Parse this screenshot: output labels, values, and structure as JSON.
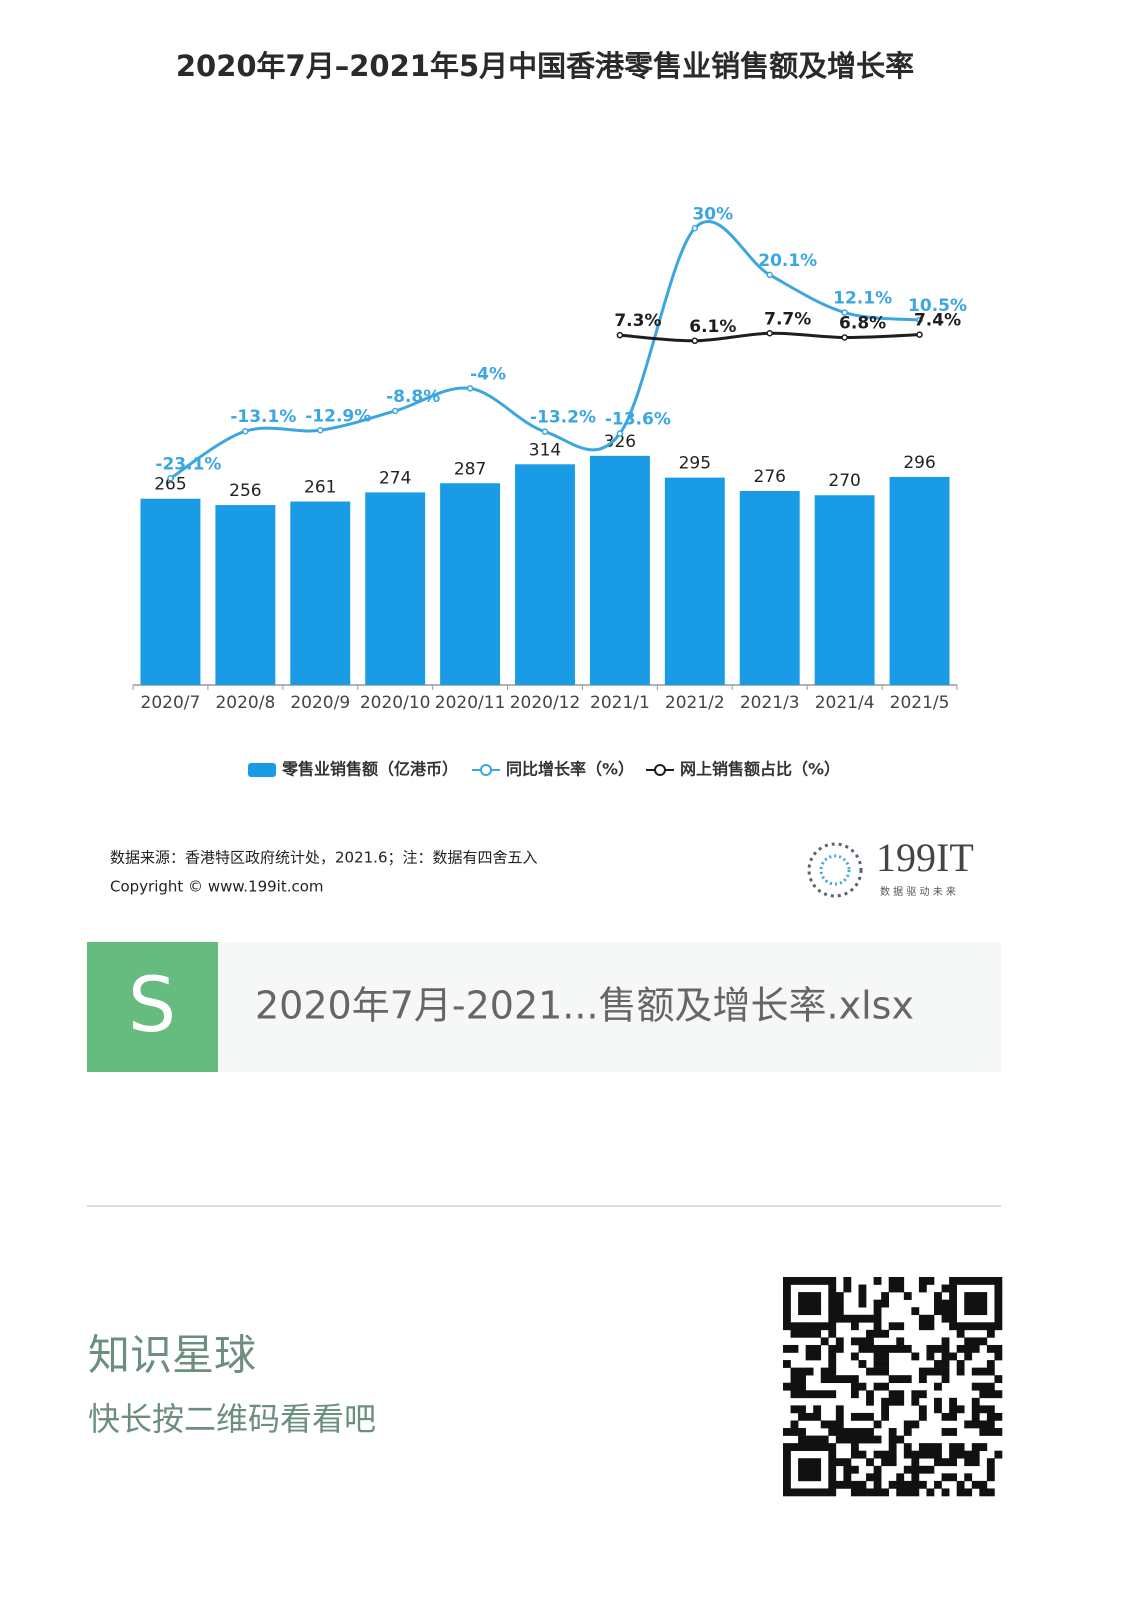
{
  "chart_data": {
    "type": "bar",
    "title": "2020年7月–2021年5月中国香港零售业销售额及增长率",
    "categories": [
      "2020/7",
      "2020/8",
      "2020/9",
      "2020/10",
      "2020/11",
      "2020/12",
      "2021/1",
      "2021/2",
      "2021/3",
      "2021/4",
      "2021/5"
    ],
    "series": [
      {
        "name": "零售业销售额（亿港币）",
        "type": "bar",
        "color": "#1a9be6",
        "values": [
          265,
          256,
          261,
          274,
          287,
          314,
          326,
          295,
          276,
          270,
          296
        ]
      },
      {
        "name": "同比增长率（%）",
        "type": "line",
        "axis": "y2",
        "color": "#3ba6df",
        "values": [
          -23.1,
          -13.1,
          -12.9,
          -8.8,
          -4,
          -13.2,
          -13.6,
          30,
          20.1,
          12.1,
          10.5
        ],
        "value_labels": [
          "-23.1%",
          "-13.1%",
          "-12.9%",
          "-8.8%",
          "-4%",
          "-13.2%",
          "-13.6%",
          "30%",
          "20.1%",
          "12.1%",
          "10.5%"
        ]
      },
      {
        "name": "网上销售额占比（%）",
        "type": "line",
        "axis": "y2",
        "color": "#1e1e1e",
        "values": [
          null,
          null,
          null,
          null,
          null,
          null,
          7.3,
          6.1,
          7.7,
          6.8,
          7.4
        ],
        "value_labels": [
          null,
          null,
          null,
          null,
          null,
          null,
          "7.3%",
          "6.1%",
          "7.7%",
          "6.8%",
          "7.4%"
        ]
      }
    ],
    "ylim": [
      0,
      690
    ],
    "y2lim": [
      -67,
      36
    ],
    "legend": "bottom"
  },
  "source": "数据来源：香港特区政府统计处，2021.6；注：数据有四舍五入",
  "copyright": "Copyright ©   www.199it.com",
  "logo": {
    "name": "199IT",
    "slogan": "数 据 驱 动 未 来"
  },
  "file": {
    "icon": "S",
    "name": "2020年7月-2021...售额及增长率.xlsx"
  },
  "footer": {
    "title": "知识星球",
    "subtitle": "快长按二维码看看吧"
  }
}
